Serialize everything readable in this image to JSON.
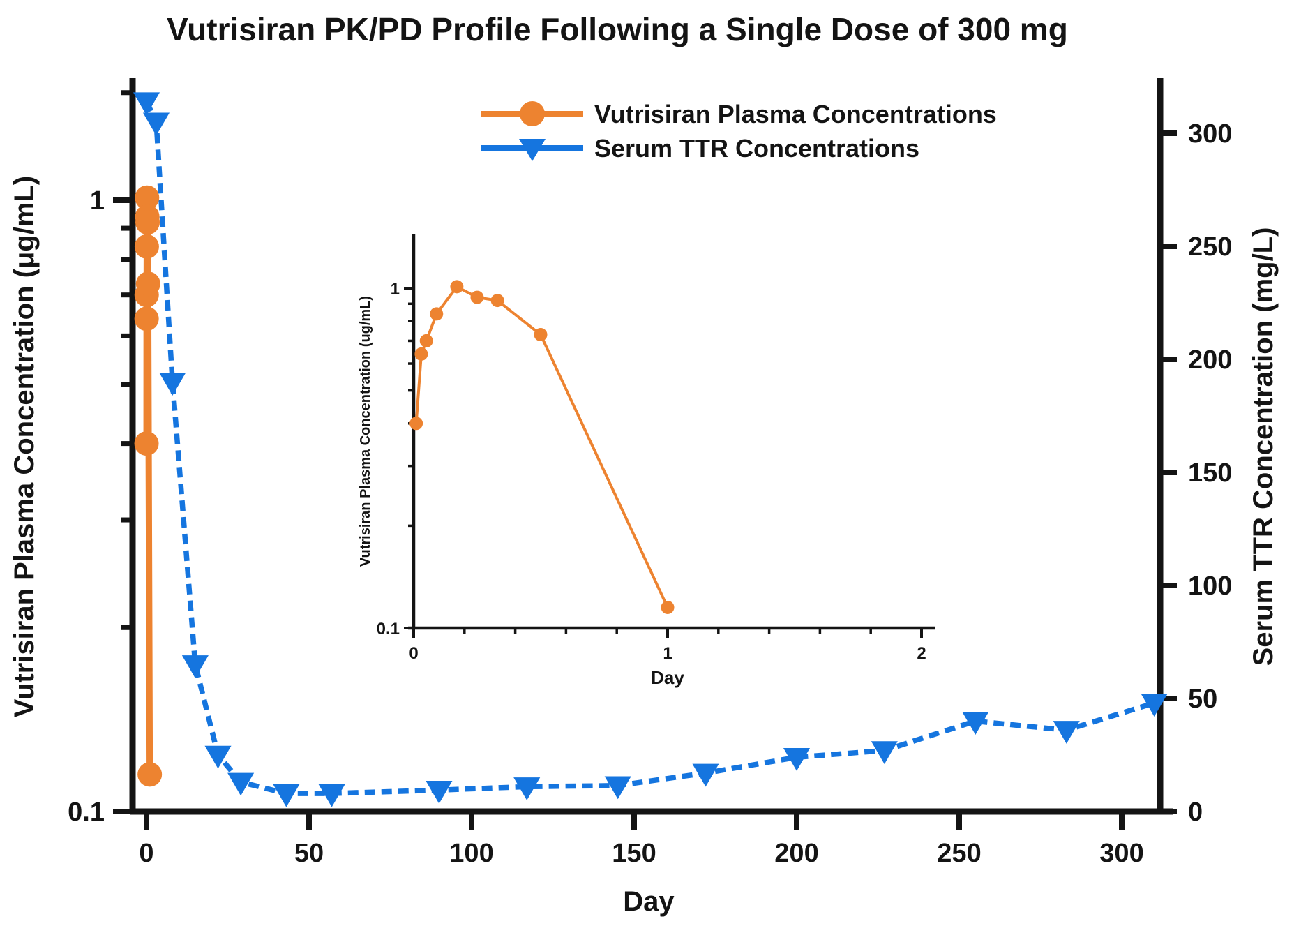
{
  "title": "Vutrisiran PK/PD Profile Following a Single Dose of 300 mg",
  "colors": {
    "vutrisiran_orange": "#ED8330",
    "ttr_blue": "#1575DF",
    "axis_black": "#141414",
    "background": "#FFFFFF"
  },
  "legend": [
    {
      "label": "Vutrisiran Plasma Concentrations",
      "marker": "circle",
      "line_style": "solid",
      "color": "#ED8330"
    },
    {
      "label": "Serum TTR Concentrations",
      "marker": "triangle-down",
      "line_style": "dashed",
      "color": "#1575DF"
    }
  ],
  "chart_data": [
    {
      "id": "main",
      "type": "line",
      "title": "Vutrisiran PK/PD Profile Following a Single Dose of 300 mg",
      "x": {
        "label": "Day",
        "range": [
          0,
          312
        ],
        "ticks": [
          0,
          50,
          100,
          150,
          200,
          250,
          300
        ]
      },
      "y_left": {
        "label": "Vutrisiran Plasma Concentration (μg/mL)",
        "scale": "log",
        "range": [
          0.1,
          1.57
        ],
        "major_ticks": [
          1,
          0.1
        ],
        "major_tick_labels": [
          "1",
          "0.1"
        ],
        "minor_ticks": [
          1.5,
          0.9,
          0.8,
          0.7,
          0.6,
          0.5,
          0.4,
          0.3,
          0.2
        ]
      },
      "y_right": {
        "label": "Serum TTR Concentration (mg/L)",
        "scale": "linear",
        "range": [
          0,
          323
        ],
        "ticks": [
          0,
          50,
          100,
          150,
          200,
          250,
          300
        ]
      },
      "legend_position": "top-center-inside",
      "grid": false,
      "series": [
        {
          "name": "Vutrisiran Plasma Concentrations",
          "axis": "left",
          "marker": "circle",
          "line_style": "solid",
          "color": "#ED8330",
          "points": [
            [
              0.01,
              0.4
            ],
            [
              0.03,
              0.64
            ],
            [
              0.05,
              0.7
            ],
            [
              0.09,
              0.84
            ],
            [
              0.17,
              1.01
            ],
            [
              0.25,
              0.94
            ],
            [
              0.33,
              0.92
            ],
            [
              0.5,
              0.73
            ],
            [
              1,
              0.115
            ]
          ]
        },
        {
          "name": "Serum TTR Concentrations",
          "axis": "right",
          "marker": "triangle-down",
          "line_style": "dashed",
          "color": "#1575DF",
          "points": [
            [
              0,
              314
            ],
            [
              3,
              305
            ],
            [
              8,
              190
            ],
            [
              15,
              65
            ],
            [
              22,
              25
            ],
            [
              29,
              13
            ],
            [
              43,
              8
            ],
            [
              57,
              8
            ],
            [
              90,
              9.5
            ],
            [
              117,
              11
            ],
            [
              145,
              11.5
            ],
            [
              172,
              17
            ],
            [
              200,
              24
            ],
            [
              227,
              27
            ],
            [
              255,
              40
            ],
            [
              283,
              36
            ],
            [
              310,
              48
            ]
          ]
        }
      ]
    },
    {
      "id": "inset",
      "type": "line",
      "title": "",
      "x": {
        "label": "Day",
        "range": [
          0,
          2
        ],
        "ticks": [
          0,
          1,
          2
        ],
        "minor_ticks": [
          0.2,
          0.4,
          0.6,
          0.8,
          1.2,
          1.4,
          1.6,
          1.8
        ]
      },
      "y": {
        "label": "Vutrisiran Plasma Concentration (ug/mL)",
        "scale": "log",
        "range": [
          0.1,
          1.43
        ],
        "major_ticks": [
          1,
          0.1
        ],
        "major_tick_labels": [
          "1",
          "0.1"
        ],
        "minor_ticks": [
          0.9,
          0.8,
          0.7,
          0.6,
          0.5,
          0.4,
          0.3,
          0.2
        ]
      },
      "grid": false,
      "series": [
        {
          "name": "Vutrisiran Plasma Concentrations",
          "marker": "circle",
          "line_style": "solid",
          "color": "#ED8330",
          "points": [
            [
              0.01,
              0.4
            ],
            [
              0.03,
              0.64
            ],
            [
              0.05,
              0.7
            ],
            [
              0.09,
              0.84
            ],
            [
              0.17,
              1.01
            ],
            [
              0.25,
              0.94
            ],
            [
              0.33,
              0.92
            ],
            [
              0.5,
              0.73
            ],
            [
              1,
              0.115
            ]
          ]
        }
      ]
    }
  ]
}
